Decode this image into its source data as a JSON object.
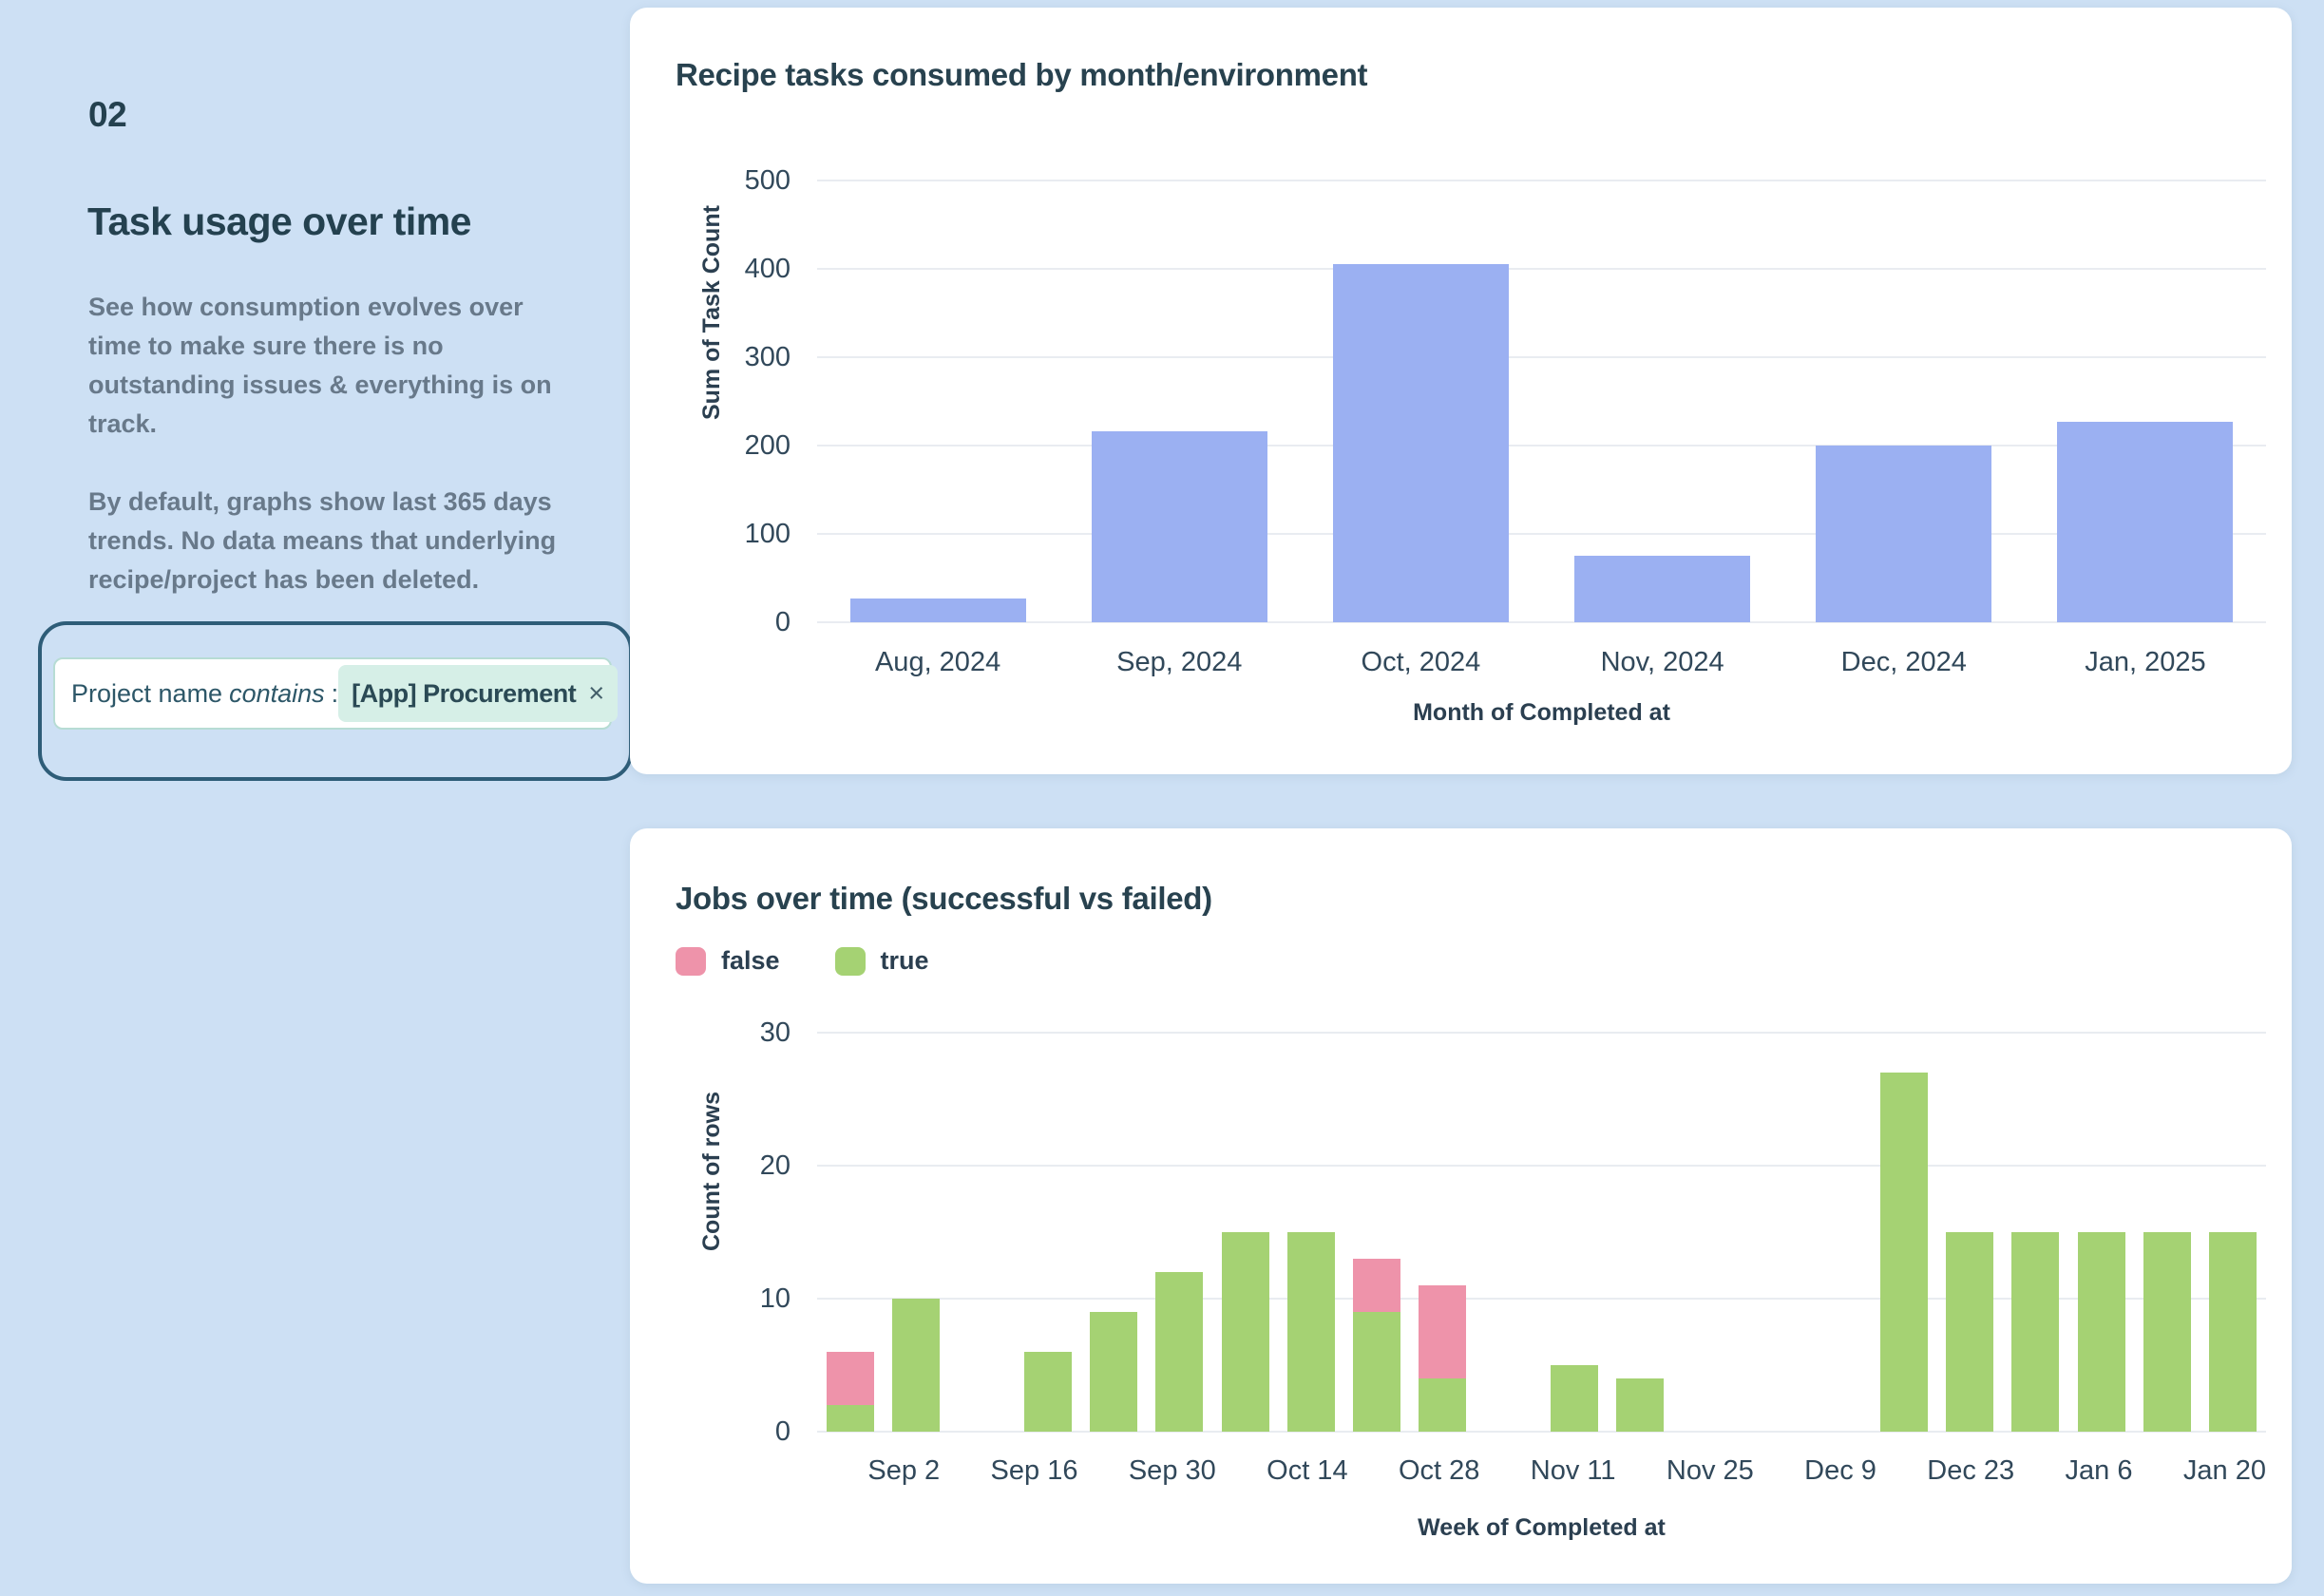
{
  "page": {
    "background_color": "#cde0f4",
    "card_color": "#ffffff"
  },
  "sidebar": {
    "number": "02",
    "title": "Task usage over time",
    "paragraph1": "See how consumption evolves over time to make sure there is no outstanding issues & everything is on track.",
    "paragraph2": "By default, graphs show last 365 days trends. No data means that underlying recipe/project has been deleted.",
    "filter": {
      "field": "Project name",
      "operator": "contains",
      "colon": ":",
      "value": "[App] Procurement",
      "remove_icon": "×"
    }
  },
  "chart_data": [
    {
      "type": "bar",
      "title": "Recipe tasks consumed by month/environment",
      "categories": [
        "Aug, 2024",
        "Sep, 2024",
        "Oct, 2024",
        "Nov, 2024",
        "Dec, 2024",
        "Jan, 2025"
      ],
      "values": [
        27,
        216,
        405,
        75,
        200,
        227
      ],
      "xlabel": "Month of Completed at",
      "ylabel": "Sum of Task Count",
      "ylim": [
        0,
        500
      ],
      "yticks": [
        0,
        100,
        200,
        300,
        400,
        500
      ],
      "bar_color": "#9bb0f2",
      "grid": true,
      "legend_position": "none"
    },
    {
      "type": "stacked-bar",
      "title": "Jobs over time (successful vs failed)",
      "categories": [
        "",
        "Sep 2",
        "",
        "Sep 16",
        "",
        "Sep 30",
        "",
        "Oct 14",
        "",
        "Oct 28",
        "",
        "Nov 11",
        "",
        "Nov 25",
        "",
        "Dec 9",
        "",
        "Dec 23",
        "",
        "Jan 6",
        "",
        "Jan 20"
      ],
      "series": [
        {
          "name": "false",
          "color": "#ee93aa",
          "values": [
            4,
            0,
            0,
            0,
            0,
            0,
            0,
            0,
            4,
            7,
            0,
            0,
            0,
            0,
            0,
            0,
            0,
            0,
            0,
            0,
            0,
            0
          ]
        },
        {
          "name": "true",
          "color": "#a5d273",
          "values": [
            2,
            10,
            0,
            6,
            9,
            12,
            15,
            15,
            9,
            4,
            0,
            5,
            4,
            0,
            0,
            0,
            27,
            15,
            15,
            15,
            15,
            15
          ]
        }
      ],
      "xlabel": "Week of Completed at",
      "ylabel": "Count of rows",
      "ylim": [
        0,
        30
      ],
      "yticks": [
        0,
        10,
        20,
        30
      ],
      "grid": true,
      "legend_position": "top-left"
    }
  ]
}
